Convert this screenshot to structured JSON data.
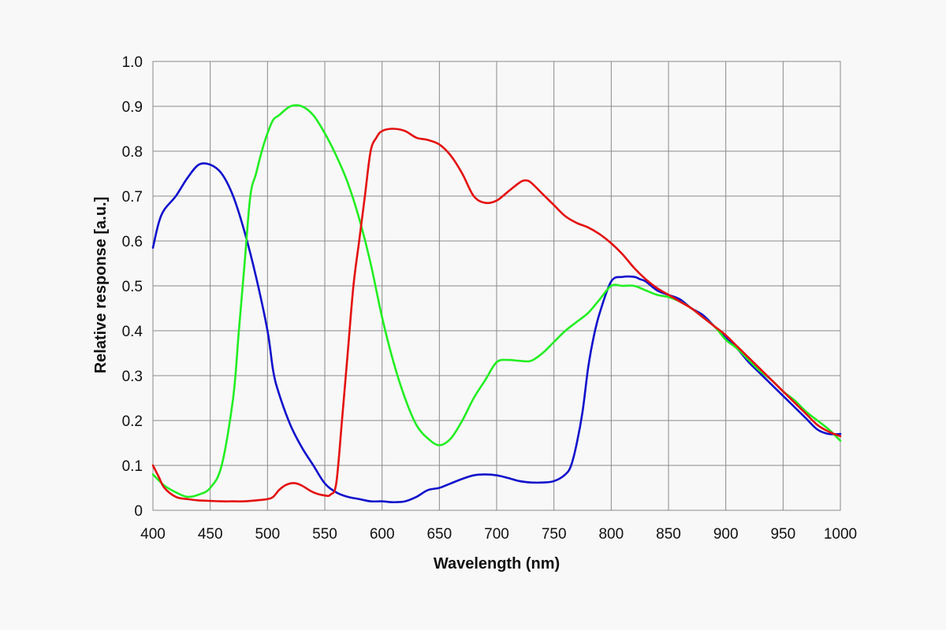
{
  "chart_data": {
    "type": "line",
    "title": "",
    "xlabel": "Wavelength (nm)",
    "ylabel": "Relative response [a.u.]",
    "xlim": [
      400,
      1000
    ],
    "ylim": [
      0,
      1.0
    ],
    "grid": true,
    "x_ticks": [
      "400",
      "450",
      "500",
      "550",
      "600",
      "650",
      "700",
      "750",
      "800",
      "850",
      "900",
      "950",
      "1000"
    ],
    "y_ticks": [
      "0",
      "0.1",
      "0.2",
      "0.3",
      "0.4",
      "0.5",
      "0.6",
      "0.7",
      "0.8",
      "0.9",
      "1.0"
    ],
    "series": [
      {
        "color": "#1010cc",
        "x": [
          400,
          405,
          410,
          420,
          430,
          440,
          450,
          460,
          470,
          480,
          490,
          500,
          505,
          510,
          520,
          530,
          540,
          550,
          560,
          570,
          580,
          590,
          600,
          610,
          620,
          630,
          640,
          650,
          660,
          670,
          680,
          690,
          700,
          710,
          720,
          730,
          740,
          750,
          760,
          765,
          770,
          775,
          780,
          785,
          790,
          800,
          810,
          820,
          825,
          830,
          840,
          850,
          860,
          870,
          880,
          890,
          900,
          910,
          920,
          930,
          940,
          950,
          960,
          970,
          980,
          990,
          1000
        ],
        "values": [
          0.585,
          0.64,
          0.67,
          0.7,
          0.74,
          0.77,
          0.77,
          0.75,
          0.7,
          0.62,
          0.52,
          0.4,
          0.31,
          0.26,
          0.19,
          0.14,
          0.1,
          0.06,
          0.04,
          0.03,
          0.025,
          0.02,
          0.02,
          0.018,
          0.02,
          0.03,
          0.045,
          0.05,
          0.06,
          0.07,
          0.078,
          0.08,
          0.078,
          0.072,
          0.065,
          0.062,
          0.062,
          0.065,
          0.08,
          0.1,
          0.15,
          0.22,
          0.32,
          0.39,
          0.44,
          0.51,
          0.52,
          0.52,
          0.515,
          0.51,
          0.49,
          0.48,
          0.47,
          0.45,
          0.435,
          0.41,
          0.385,
          0.36,
          0.33,
          0.305,
          0.28,
          0.255,
          0.23,
          0.205,
          0.18,
          0.17,
          0.17
        ]
      },
      {
        "color": "#22ee22",
        "x": [
          400,
          410,
          420,
          430,
          440,
          450,
          460,
          470,
          475,
          480,
          485,
          490,
          495,
          500,
          505,
          510,
          520,
          530,
          540,
          550,
          560,
          570,
          580,
          590,
          600,
          610,
          620,
          630,
          640,
          650,
          660,
          670,
          680,
          690,
          700,
          710,
          720,
          730,
          740,
          750,
          760,
          770,
          780,
          790,
          800,
          810,
          820,
          830,
          840,
          850,
          860,
          870,
          880,
          890,
          900,
          910,
          920,
          930,
          940,
          950,
          960,
          970,
          980,
          990,
          1000
        ],
        "values": [
          0.08,
          0.055,
          0.04,
          0.03,
          0.035,
          0.05,
          0.1,
          0.25,
          0.4,
          0.55,
          0.7,
          0.75,
          0.8,
          0.84,
          0.87,
          0.88,
          0.9,
          0.9,
          0.88,
          0.84,
          0.79,
          0.73,
          0.65,
          0.55,
          0.43,
          0.33,
          0.25,
          0.19,
          0.16,
          0.145,
          0.16,
          0.2,
          0.25,
          0.29,
          0.33,
          0.335,
          0.333,
          0.333,
          0.35,
          0.375,
          0.4,
          0.42,
          0.44,
          0.47,
          0.5,
          0.5,
          0.5,
          0.49,
          0.48,
          0.475,
          0.465,
          0.45,
          0.43,
          0.41,
          0.38,
          0.36,
          0.335,
          0.31,
          0.29,
          0.265,
          0.245,
          0.22,
          0.2,
          0.18,
          0.155
        ]
      },
      {
        "color": "#e41010",
        "x": [
          400,
          405,
          410,
          420,
          430,
          440,
          450,
          460,
          470,
          480,
          490,
          500,
          505,
          510,
          515,
          520,
          525,
          530,
          540,
          550,
          555,
          560,
          565,
          570,
          575,
          580,
          585,
          590,
          595,
          600,
          610,
          620,
          630,
          640,
          650,
          660,
          670,
          680,
          690,
          700,
          710,
          720,
          725,
          730,
          740,
          750,
          760,
          770,
          780,
          790,
          800,
          810,
          820,
          830,
          840,
          850,
          860,
          870,
          880,
          890,
          900,
          910,
          920,
          930,
          940,
          950,
          960,
          970,
          980,
          990,
          1000
        ],
        "values": [
          0.1,
          0.075,
          0.05,
          0.03,
          0.025,
          0.022,
          0.021,
          0.02,
          0.02,
          0.02,
          0.022,
          0.025,
          0.03,
          0.045,
          0.055,
          0.06,
          0.06,
          0.055,
          0.04,
          0.033,
          0.035,
          0.06,
          0.2,
          0.35,
          0.5,
          0.6,
          0.7,
          0.8,
          0.83,
          0.845,
          0.85,
          0.845,
          0.83,
          0.825,
          0.815,
          0.79,
          0.75,
          0.7,
          0.685,
          0.69,
          0.71,
          0.73,
          0.735,
          0.73,
          0.705,
          0.68,
          0.655,
          0.64,
          0.63,
          0.615,
          0.595,
          0.57,
          0.54,
          0.515,
          0.495,
          0.48,
          0.465,
          0.45,
          0.43,
          0.41,
          0.39,
          0.365,
          0.34,
          0.315,
          0.29,
          0.265,
          0.24,
          0.215,
          0.19,
          0.175,
          0.165
        ]
      }
    ]
  }
}
